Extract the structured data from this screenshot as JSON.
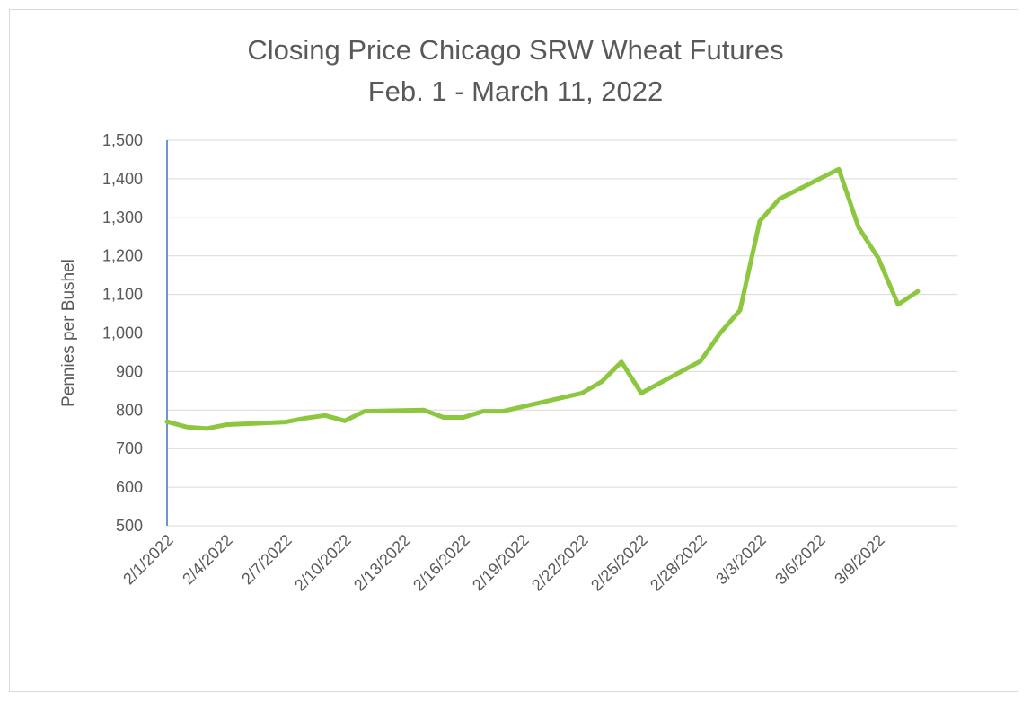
{
  "chart_data": {
    "type": "line",
    "title": "Closing Price Chicago SRW Wheat Futures",
    "subtitle": "Feb. 1 - March 11, 2022",
    "xlabel": "",
    "ylabel": "Pennies per Bushel",
    "ylim": [
      500,
      1500
    ],
    "yticks": [
      500,
      600,
      700,
      800,
      900,
      1000,
      1100,
      1200,
      1300,
      1400,
      1500
    ],
    "ytick_labels": [
      "500",
      "600",
      "700",
      "800",
      "900",
      "1,000",
      "1,100",
      "1,200",
      "1,300",
      "1,400",
      "1,500"
    ],
    "xlim": [
      "2022-02-01",
      "2022-03-13"
    ],
    "xtick_labels": [
      "2/1/2022",
      "2/4/2022",
      "2/7/2022",
      "2/10/2022",
      "2/13/2022",
      "2/16/2022",
      "2/19/2022",
      "2/22/2022",
      "2/25/2022",
      "2/28/2022",
      "3/3/2022",
      "3/6/2022",
      "3/9/2022"
    ],
    "xtick_dates": [
      "2022-02-01",
      "2022-02-04",
      "2022-02-07",
      "2022-02-10",
      "2022-02-13",
      "2022-02-16",
      "2022-02-19",
      "2022-02-22",
      "2022-02-25",
      "2022-02-28",
      "2022-03-03",
      "2022-03-06",
      "2022-03-09"
    ],
    "grid": true,
    "color": "#8dc63f",
    "series": [
      {
        "x": [
          "2022-02-01",
          "2022-02-02",
          "2022-02-03",
          "2022-02-04",
          "2022-02-07",
          "2022-02-08",
          "2022-02-09",
          "2022-02-10",
          "2022-02-11",
          "2022-02-14",
          "2022-02-15",
          "2022-02-16",
          "2022-02-17",
          "2022-02-18",
          "2022-02-22",
          "2022-02-23",
          "2022-02-24",
          "2022-02-25",
          "2022-02-28",
          "2022-03-01",
          "2022-03-02",
          "2022-03-03",
          "2022-03-04",
          "2022-03-07",
          "2022-03-08",
          "2022-03-09",
          "2022-03-10",
          "2022-03-11"
        ],
        "values": [
          770,
          756,
          752,
          762,
          769,
          779,
          786,
          772,
          797,
          800,
          781,
          781,
          797,
          797,
          844,
          874,
          925,
          844,
          927,
          1000,
          1059,
          1290,
          1348,
          1425,
          1274,
          1194,
          1074,
          1108
        ]
      }
    ]
  }
}
